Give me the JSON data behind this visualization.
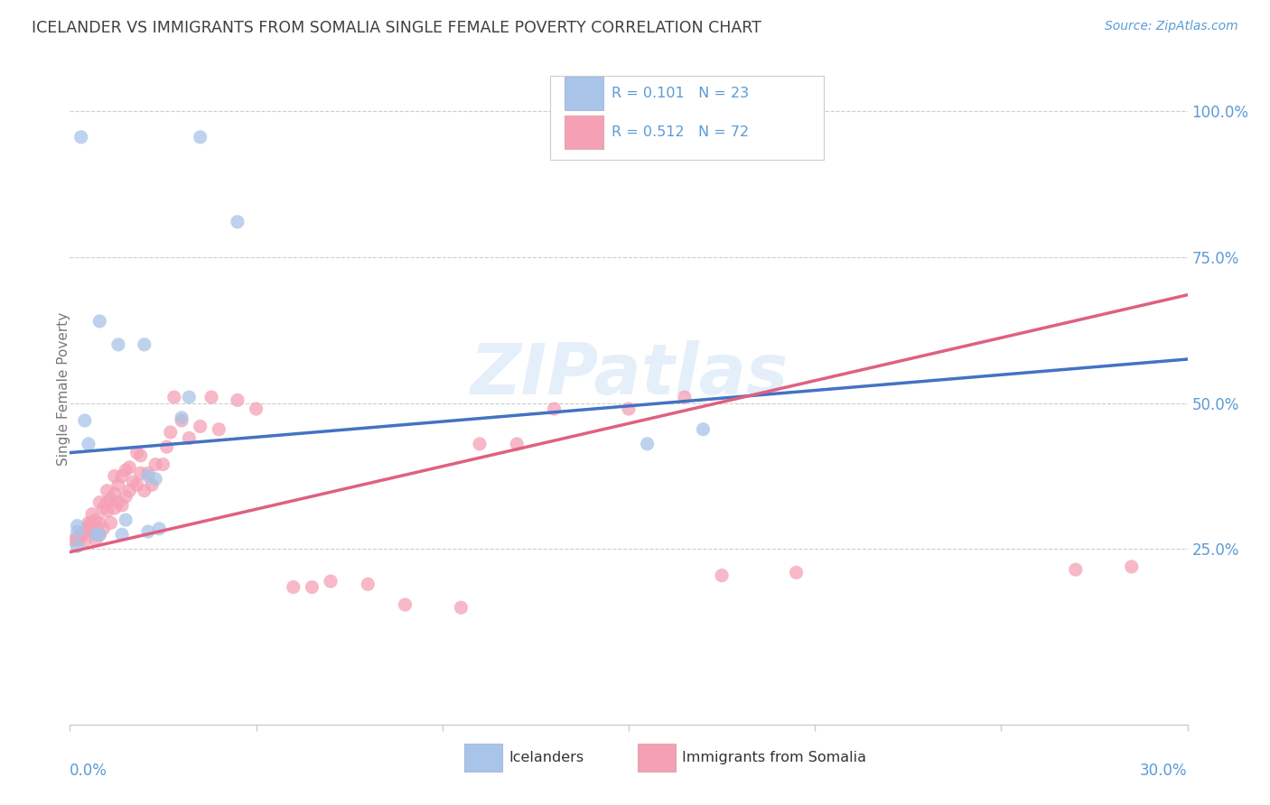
{
  "title": "ICELANDER VS IMMIGRANTS FROM SOMALIA SINGLE FEMALE POVERTY CORRELATION CHART",
  "source": "Source: ZipAtlas.com",
  "ylabel": "Single Female Poverty",
  "ytick_labels": [
    "25.0%",
    "50.0%",
    "75.0%",
    "100.0%"
  ],
  "ytick_values": [
    0.25,
    0.5,
    0.75,
    1.0
  ],
  "legend_label1": "Icelanders",
  "legend_label2": "Immigrants from Somalia",
  "color_blue": "#a8c4e8",
  "color_pink": "#f5a0b5",
  "color_blue_line": "#4472c4",
  "color_pink_line": "#e06080",
  "color_axis_labels": "#5b9bd5",
  "color_title": "#404040",
  "watermark": "ZIPatlas",
  "xlim": [
    0.0,
    0.3
  ],
  "ylim": [
    -0.05,
    1.1
  ],
  "blue_line_x0": 0.0,
  "blue_line_y0": 0.415,
  "blue_line_x1": 0.3,
  "blue_line_y1": 0.575,
  "pink_line_x0": 0.0,
  "pink_line_y0": 0.245,
  "pink_line_x1": 0.3,
  "pink_line_y1": 0.685,
  "dash_line_x0": 0.115,
  "dash_line_x1": 0.3,
  "iceland_x": [
    0.003,
    0.035,
    0.045,
    0.008,
    0.013,
    0.02,
    0.03,
    0.032,
    0.004,
    0.005,
    0.002,
    0.002,
    0.007,
    0.008,
    0.014,
    0.015,
    0.021,
    0.024,
    0.021,
    0.023,
    0.002,
    0.155,
    0.17
  ],
  "iceland_y": [
    0.955,
    0.955,
    0.81,
    0.64,
    0.6,
    0.6,
    0.475,
    0.51,
    0.47,
    0.43,
    0.28,
    0.29,
    0.275,
    0.275,
    0.275,
    0.3,
    0.28,
    0.285,
    0.375,
    0.37,
    0.255,
    0.43,
    0.455
  ],
  "somalia_x": [
    0.001,
    0.002,
    0.002,
    0.003,
    0.003,
    0.004,
    0.004,
    0.005,
    0.005,
    0.005,
    0.006,
    0.006,
    0.006,
    0.007,
    0.007,
    0.007,
    0.008,
    0.008,
    0.008,
    0.009,
    0.009,
    0.01,
    0.01,
    0.01,
    0.011,
    0.011,
    0.012,
    0.012,
    0.012,
    0.013,
    0.013,
    0.014,
    0.014,
    0.015,
    0.015,
    0.016,
    0.016,
    0.017,
    0.018,
    0.018,
    0.019,
    0.019,
    0.02,
    0.021,
    0.022,
    0.023,
    0.025,
    0.026,
    0.027,
    0.028,
    0.03,
    0.032,
    0.035,
    0.038,
    0.04,
    0.045,
    0.05,
    0.06,
    0.065,
    0.07,
    0.08,
    0.09,
    0.105,
    0.11,
    0.12,
    0.13,
    0.15,
    0.165,
    0.175,
    0.195,
    0.27,
    0.285
  ],
  "somalia_y": [
    0.265,
    0.265,
    0.27,
    0.275,
    0.27,
    0.28,
    0.265,
    0.285,
    0.29,
    0.295,
    0.28,
    0.295,
    0.31,
    0.265,
    0.275,
    0.3,
    0.275,
    0.295,
    0.33,
    0.285,
    0.32,
    0.315,
    0.33,
    0.35,
    0.295,
    0.335,
    0.32,
    0.345,
    0.375,
    0.33,
    0.36,
    0.325,
    0.375,
    0.34,
    0.385,
    0.35,
    0.39,
    0.365,
    0.36,
    0.415,
    0.38,
    0.41,
    0.35,
    0.38,
    0.36,
    0.395,
    0.395,
    0.425,
    0.45,
    0.51,
    0.47,
    0.44,
    0.46,
    0.51,
    0.455,
    0.505,
    0.49,
    0.185,
    0.185,
    0.195,
    0.19,
    0.155,
    0.15,
    0.43,
    0.43,
    0.49,
    0.49,
    0.51,
    0.205,
    0.21,
    0.215,
    0.22
  ]
}
